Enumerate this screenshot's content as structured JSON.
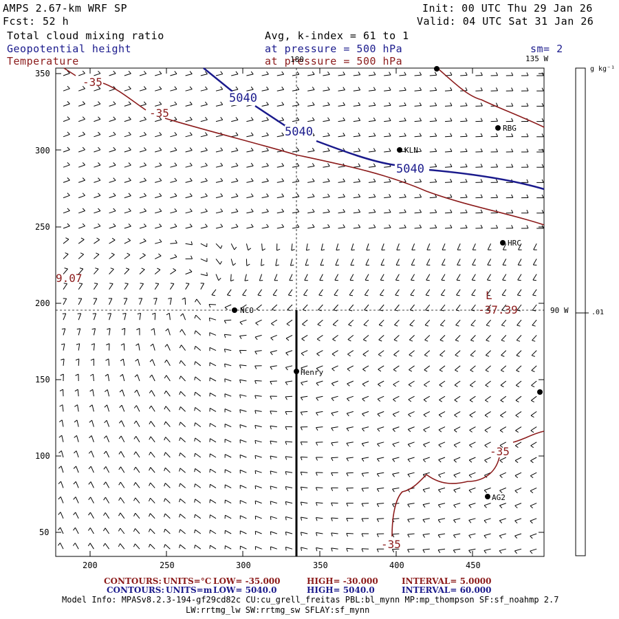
{
  "header": {
    "model": "AMPS 2.67-km WRF SP",
    "forecast_label": "Fcst:",
    "forecast_hours": "52 h",
    "init": "Init: 00 UTC Thu 29 Jan 26",
    "valid": "Valid: 04 UTC Sat 31 Jan 26",
    "field1": "Total cloud mixing ratio",
    "field2": "Geopotential height",
    "field3": "Temperature",
    "avg": "Avg, k-index =  61 to   1",
    "pressure1": "at pressure =  500 hPa",
    "pressure2": "at pressure =  500 hPa",
    "smoothing": "sm= 2"
  },
  "colors": {
    "geopotential": "#1a1a8c",
    "temperature": "#8b1a1a",
    "barbs": "#000000"
  },
  "map": {
    "x_ticks": [
      "200",
      "250",
      "300",
      "350",
      "400",
      "450"
    ],
    "y_ticks": [
      "350",
      "300",
      "250",
      "200",
      "150",
      "100",
      "50"
    ],
    "longitude_labels": {
      "top": "180",
      "top_right": "135 W",
      "right": "90 W"
    },
    "stations": [
      {
        "name": "RBG"
      },
      {
        "name": "KLN"
      },
      {
        "name": "HRC"
      },
      {
        "name": "NCO"
      },
      {
        "name": "Henry"
      },
      {
        "name": "AG2"
      }
    ],
    "contour_labels": {
      "temp_1": "-35",
      "temp_2": "-35",
      "temp_3": "-35",
      "temp_4": "-35",
      "temp_left": "9.07",
      "temp_low": "-37.39",
      "low_marker": "L",
      "height_1": "5040",
      "height_2": "5040",
      "height_3": "5040"
    }
  },
  "colorbar": {
    "units": "g kg⁻¹",
    "value": ".01"
  },
  "footer": {
    "contours_temp": {
      "label": "CONTOURS:",
      "units": "UNITS=°C",
      "low": "LOW= -35.000",
      "high": "HIGH= -30.000",
      "interval": "INTERVAL=   5.0000"
    },
    "contours_height": {
      "label": "CONTOURS:",
      "units": "UNITS=m",
      "low": "LOW=  5040.0",
      "high": "HIGH=  5040.0",
      "interval": "INTERVAL=   60.000"
    },
    "model_info": "Model Info: MPASv8.2.3-194-gf29cd82c CU:cu_grell_freitas PBL:bl_mynn MP:mp_thompson SF:sf_noahmp 2.7",
    "model_info2": "LW:rrtmg_lw SW:rrtmg_sw SFLAY:sf_mynn"
  }
}
